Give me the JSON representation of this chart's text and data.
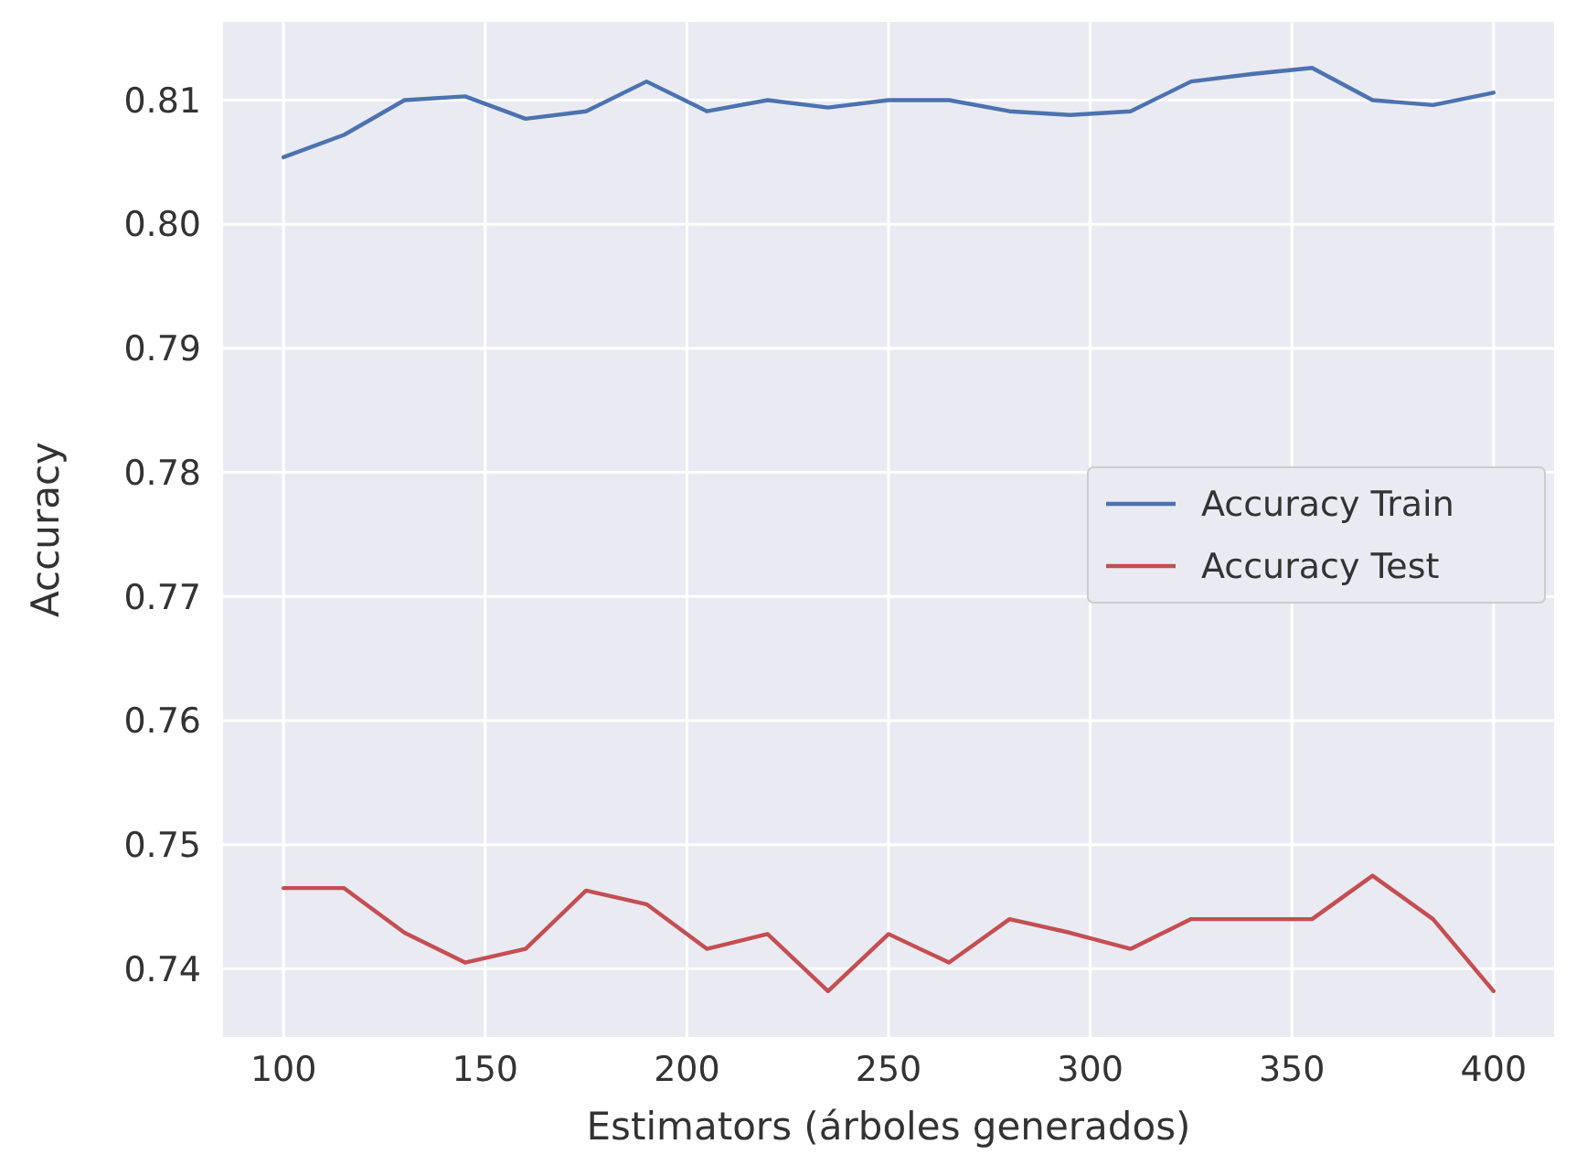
{
  "chart_data": {
    "type": "line",
    "xlabel": "Estimators (árboles generados)",
    "ylabel": "Accuracy",
    "x": [
      100,
      115,
      130,
      145,
      160,
      175,
      190,
      205,
      220,
      235,
      250,
      265,
      280,
      295,
      310,
      325,
      340,
      355,
      370,
      385,
      400
    ],
    "series": [
      {
        "name": "Accuracy Train",
        "color": "#4c72b0",
        "values": [
          0.8054,
          0.8072,
          0.81,
          0.8103,
          0.8085,
          0.8091,
          0.8115,
          0.8091,
          0.81,
          0.8094,
          0.81,
          0.81,
          0.8091,
          0.8088,
          0.8091,
          0.8115,
          0.8121,
          0.8126,
          0.81,
          0.8096,
          0.8106
        ]
      },
      {
        "name": "Accuracy Test",
        "color": "#c44e52",
        "values": [
          0.7465,
          0.7465,
          0.7429,
          0.7405,
          0.7416,
          0.7463,
          0.7452,
          0.7416,
          0.7428,
          0.7382,
          0.7428,
          0.7405,
          0.744,
          0.7429,
          0.7416,
          0.744,
          0.744,
          0.744,
          0.7475,
          0.744,
          0.7382
        ]
      }
    ],
    "xlim": [
      85,
      415
    ],
    "xticks": [
      100,
      150,
      200,
      250,
      300,
      350,
      400
    ],
    "ylim": [
      0.7345,
      0.8163
    ],
    "yticks": [
      0.74,
      0.75,
      0.76,
      0.77,
      0.78,
      0.79,
      {
        "value": 0.8,
        "label": "0.80"
      },
      0.81
    ],
    "grid": true,
    "legend": "right",
    "marker": "none",
    "line_style": "solid"
  }
}
